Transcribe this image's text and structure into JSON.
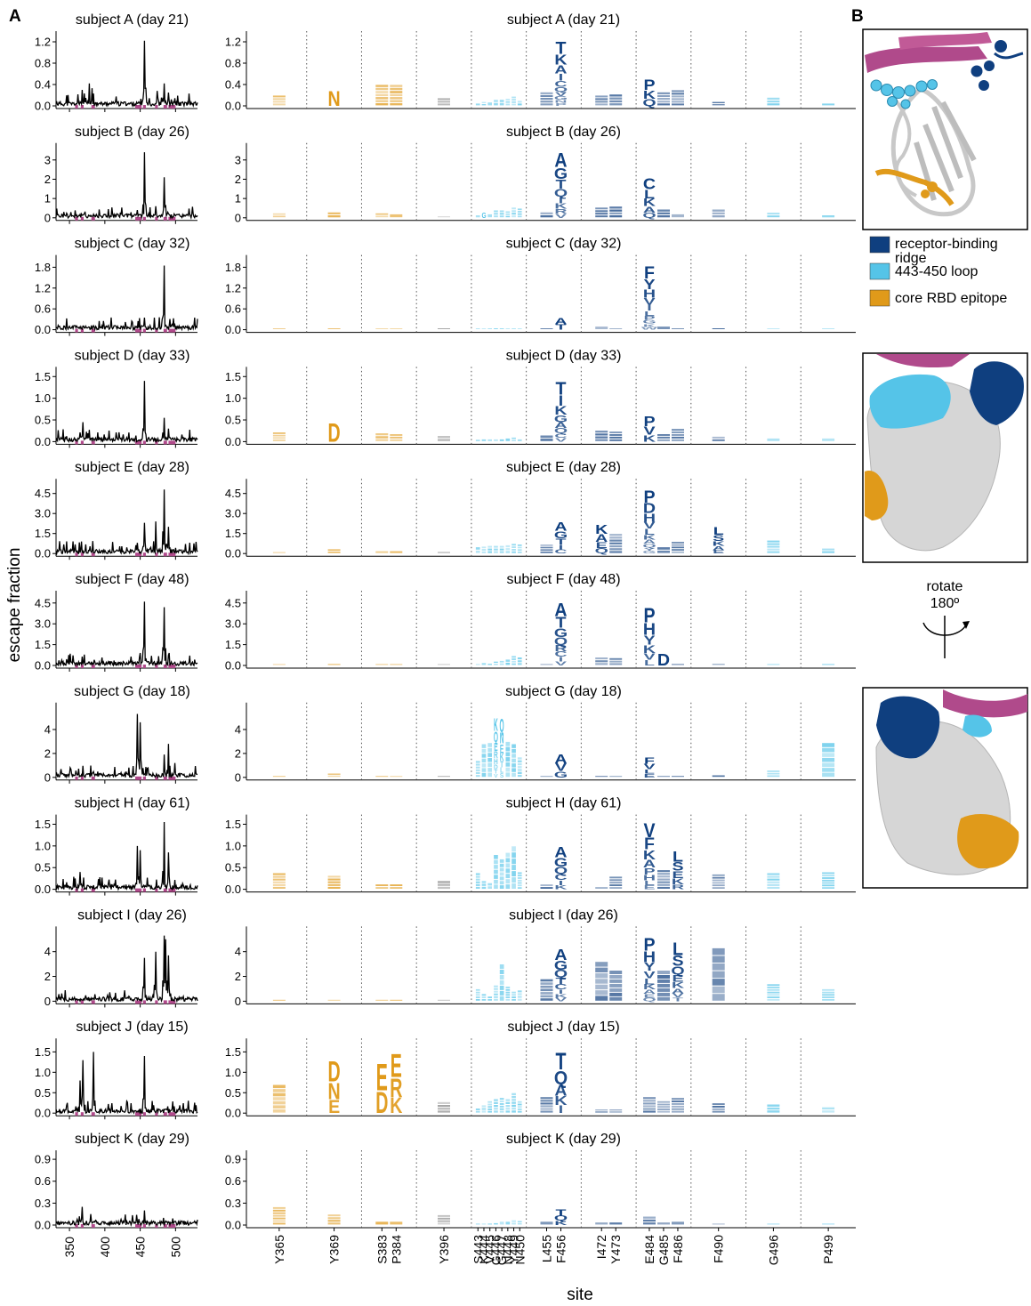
{
  "panel_labels": {
    "a": "A",
    "b": "B"
  },
  "axis": {
    "ylabel": "escape fraction",
    "xlabel_logo": "site"
  },
  "colors": {
    "ridge": "#0f3f7f",
    "loop": "#55c4e8",
    "core": "#e09a1a",
    "gray": "#8a8a8a",
    "site_marker": "#b04a8b",
    "helix": "#b04a8b",
    "surface": "#d6d6d6"
  },
  "legend": [
    {
      "label": "receptor-binding ridge",
      "line1": "receptor-binding",
      "line2": "ridge",
      "color": "#0f3f7f"
    },
    {
      "label": "443-450 loop",
      "color": "#55c4e8"
    },
    {
      "label": "core RBD epitope",
      "color": "#e09a1a"
    }
  ],
  "rotate": {
    "line1": "rotate",
    "line2": "180º"
  },
  "chart_data": {
    "type": "line+logo",
    "line_xticks": [
      350,
      400,
      450,
      500
    ],
    "line_xlim": [
      331,
      531
    ],
    "site_colors": [
      "core",
      "core",
      "core",
      "core",
      "gray",
      "loop",
      "loop",
      "loop",
      "loop",
      "loop",
      "loop",
      "loop",
      "loop",
      "ridge",
      "ridge",
      "ridge",
      "ridge",
      "ridge",
      "ridge",
      "ridge",
      "ridge",
      "loop",
      "loop"
    ],
    "sites": [
      "Y365",
      "Y369",
      "S383",
      "P384",
      "Y396",
      "S443",
      "K444",
      "V445",
      "G446",
      "G447",
      "N448",
      "Y449",
      "N450",
      "L455",
      "F456",
      "I472",
      "Y473",
      "E484",
      "G485",
      "F486",
      "F490",
      "G496",
      "P499"
    ],
    "site_groups": [
      [
        0
      ],
      [
        1
      ],
      [
        2,
        3
      ],
      [
        4
      ],
      [
        5,
        6,
        7,
        8,
        9,
        10,
        11,
        12
      ],
      [
        13,
        14
      ],
      [
        15,
        16
      ],
      [
        17,
        18,
        19
      ],
      [
        20
      ],
      [
        21
      ],
      [
        22
      ]
    ],
    "subjects": [
      {
        "title": "subject A (day 21)",
        "ylim": [
          0,
          1.3
        ],
        "yticks": [
          0.0,
          0.4,
          0.8,
          1.2
        ],
        "yticklabels": [
          "0.0",
          "0.4",
          "0.8",
          "1.2"
        ],
        "peaks": [
          [
            368,
            0.3
          ],
          [
            378,
            0.42
          ],
          [
            382,
            0.33
          ],
          [
            456,
            1.22
          ],
          [
            474,
            0.28
          ],
          [
            484,
            0.42
          ],
          [
            490,
            0.25
          ]
        ],
        "site_escape": [
          0.2,
          0.3,
          0.4,
          0.4,
          0.15,
          0.05,
          0.08,
          0.07,
          0.12,
          0.12,
          0.14,
          0.18,
          0.1,
          0.26,
          1.22,
          0.2,
          0.22,
          0.5,
          0.26,
          0.3,
          0.08,
          0.16,
          0.05
        ],
        "logo_letters": {
          "14": "TKAICQVGNP",
          "1": "N",
          "17": "PKQ"
        }
      },
      {
        "title": "subject B (day 26)",
        "ylim": [
          0,
          3.6
        ],
        "yticks": [
          0,
          1,
          2,
          3
        ],
        "yticklabels": [
          "0",
          "1",
          "2",
          "3"
        ],
        "peaks": [
          [
            456,
            3.4
          ],
          [
            484,
            2.1
          ],
          [
            472,
            0.6
          ],
          [
            446,
            0.4
          ]
        ],
        "site_escape": [
          0.25,
          0.3,
          0.25,
          0.2,
          0.06,
          0.15,
          0.3,
          0.2,
          0.4,
          0.4,
          0.35,
          0.55,
          0.5,
          0.3,
          3.4,
          0.55,
          0.6,
          2.1,
          0.45,
          0.2,
          0.45,
          0.28,
          0.15
        ],
        "logo_letters": {
          "14": "AGTQIKRV",
          "17": "CLKAQ",
          "6": "G"
        }
      },
      {
        "title": "subject C (day 32)",
        "ylim": [
          0,
          2.0
        ],
        "yticks": [
          0.0,
          0.6,
          1.2,
          1.8
        ],
        "yticklabels": [
          "0.0",
          "0.6",
          "1.2",
          "1.8"
        ],
        "peaks": [
          [
            484,
            1.85
          ],
          [
            456,
            0.35
          ]
        ],
        "site_escape": [
          0.02,
          0.03,
          0.02,
          0.02,
          0.02,
          0.02,
          0.02,
          0.02,
          0.02,
          0.02,
          0.02,
          0.02,
          0.02,
          0.02,
          0.35,
          0.1,
          0.05,
          1.85,
          0.1,
          0.03,
          0.03,
          0.02,
          0.02
        ],
        "logo_letters": {
          "17": "FYHVILPGKW",
          "14": "AT"
        }
      },
      {
        "title": "subject D (day 33)",
        "ylim": [
          0,
          1.6
        ],
        "yticks": [
          0.0,
          0.5,
          1.0,
          1.5
        ],
        "yticklabels": [
          "0.0",
          "0.5",
          "1.0",
          "1.5"
        ],
        "peaks": [
          [
            456,
            1.4
          ],
          [
            369,
            0.45
          ],
          [
            484,
            0.55
          ],
          [
            490,
            0.3
          ]
        ],
        "site_escape": [
          0.22,
          0.45,
          0.2,
          0.18,
          0.14,
          0.05,
          0.06,
          0.06,
          0.06,
          0.06,
          0.08,
          0.1,
          0.06,
          0.15,
          1.4,
          0.26,
          0.24,
          0.6,
          0.18,
          0.3,
          0.12,
          0.08,
          0.08
        ],
        "logo_letters": {
          "14": "TIKGAQCV",
          "1": "D",
          "17": "PVK"
        }
      },
      {
        "title": "subject E (day 28)",
        "ylim": [
          0,
          5.2
        ],
        "yticks": [
          0.0,
          1.5,
          3.0,
          4.5
        ],
        "yticklabels": [
          "0.0",
          "1.5",
          "3.0",
          "4.5"
        ],
        "peaks": [
          [
            484,
            4.8
          ],
          [
            472,
            2.4
          ],
          [
            456,
            2.3
          ],
          [
            490,
            2.0
          ],
          [
            446,
            0.8
          ]
        ],
        "site_escape": [
          0.12,
          0.35,
          0.2,
          0.2,
          0.15,
          0.5,
          0.55,
          0.6,
          0.6,
          0.6,
          0.65,
          0.75,
          0.7,
          0.7,
          2.4,
          2.2,
          1.5,
          4.8,
          0.5,
          0.9,
          2.0,
          1.0,
          0.4
        ],
        "logo_letters": {
          "17": "PDHVLKAQYG",
          "14": "AGTIC",
          "15": "KAEQ",
          "20": "LSKAE"
        }
      },
      {
        "title": "subject F (day 48)",
        "ylim": [
          0,
          5.0
        ],
        "yticks": [
          0.0,
          1.5,
          3.0,
          4.5
        ],
        "yticklabels": [
          "0.0",
          "1.5",
          "3.0",
          "4.5"
        ],
        "peaks": [
          [
            456,
            4.6
          ],
          [
            484,
            4.2
          ],
          [
            449,
            0.6
          ]
        ],
        "site_escape": [
          0.08,
          0.08,
          0.06,
          0.06,
          0.06,
          0.08,
          0.2,
          0.15,
          0.3,
          0.35,
          0.45,
          0.7,
          0.6,
          0.08,
          4.6,
          0.6,
          0.55,
          4.2,
          0.9,
          0.06,
          0.15,
          0.05,
          0.05
        ],
        "logo_letters": {
          "14": "ATGQRCIV",
          "17": "PHYKVL",
          "18": "D"
        }
      },
      {
        "title": "subject G (day 18)",
        "ylim": [
          0,
          5.8
        ],
        "yticks": [
          0,
          2,
          4
        ],
        "yticklabels": [
          "0",
          "2",
          "4"
        ],
        "peaks": [
          [
            446,
            5.3
          ],
          [
            450,
            4.6
          ],
          [
            484,
            1.9
          ],
          [
            490,
            2.8
          ],
          [
            499,
            1.2
          ]
        ],
        "site_escape": [
          0.08,
          0.35,
          0.06,
          0.06,
          0.06,
          1.4,
          2.8,
          2.9,
          5.0,
          5.0,
          3.0,
          2.8,
          1.7,
          0.1,
          2.0,
          0.15,
          0.15,
          1.7,
          0.1,
          0.1,
          0.2,
          0.6,
          2.9
        ],
        "logo_letters": {
          "8": "KQERHDTV",
          "9": "QNEKTLS",
          "14": "AVG",
          "17": "FVLE"
        }
      },
      {
        "title": "subject H (day 61)",
        "ylim": [
          0,
          1.6
        ],
        "yticks": [
          0.0,
          0.5,
          1.0,
          1.5
        ],
        "yticklabels": [
          "0.0",
          "0.5",
          "1.0",
          "1.5"
        ],
        "peaks": [
          [
            446,
            1.0
          ],
          [
            450,
            0.9
          ],
          [
            484,
            1.55
          ],
          [
            490,
            0.85
          ],
          [
            365,
            0.4
          ]
        ],
        "site_escape": [
          0.38,
          0.32,
          0.12,
          0.12,
          0.2,
          0.38,
          0.2,
          0.15,
          0.8,
          0.7,
          0.85,
          1.0,
          0.4,
          0.12,
          1.0,
          0.06,
          0.3,
          1.55,
          0.45,
          0.9,
          0.35,
          0.38,
          0.4
        ],
        "logo_letters": {
          "14": "AGQCIK",
          "17": "VFKAPHLE",
          "19": "LSEKR"
        }
      },
      {
        "title": "subject I (day 26)",
        "ylim": [
          0,
          5.6
        ],
        "yticks": [
          0,
          2,
          4
        ],
        "yticklabels": [
          "0",
          "2",
          "4"
        ],
        "peaks": [
          [
            456,
            3.5
          ],
          [
            472,
            4.0
          ],
          [
            484,
            5.3
          ],
          [
            486,
            5.0
          ],
          [
            490,
            3.7
          ]
        ],
        "site_escape": [
          0.1,
          0.1,
          0.06,
          0.06,
          0.06,
          1.0,
          0.6,
          0.4,
          1.3,
          3.0,
          1.2,
          0.8,
          0.9,
          1.8,
          4.3,
          3.2,
          2.5,
          5.2,
          2.5,
          4.8,
          4.3,
          1.4,
          1.0
        ],
        "logo_letters": {
          "14": "AGQTCIKV",
          "17": "PHYVLKAEQ",
          "19": "LSQEKAVT"
        }
      },
      {
        "title": "subject J (day 15)",
        "ylim": [
          0,
          1.7
        ],
        "yticks": [
          0.0,
          0.5,
          1.0,
          1.5
        ],
        "yticklabels": [
          "0.0",
          "0.5",
          "1.0",
          "1.5"
        ],
        "peaks": [
          [
            369,
            1.3
          ],
          [
            384,
            1.5
          ],
          [
            456,
            1.4
          ],
          [
            365,
            0.8
          ]
        ],
        "site_escape": [
          0.7,
          1.3,
          1.25,
          1.5,
          0.28,
          0.12,
          0.2,
          0.3,
          0.35,
          0.38,
          0.35,
          0.5,
          0.3,
          0.4,
          1.5,
          0.1,
          0.1,
          0.4,
          0.3,
          0.38,
          0.25,
          0.22,
          0.15
        ],
        "logo_letters": {
          "1": "DNE",
          "2": "ED",
          "3": "ERK",
          "14": "TQAKI"
        }
      },
      {
        "title": "subject K (day 29)",
        "ylim": [
          0,
          0.95
        ],
        "yticks": [
          0.0,
          0.3,
          0.6,
          0.9
        ],
        "yticklabels": [
          "0.0",
          "0.3",
          "0.6",
          "0.9"
        ],
        "peaks": [
          [
            368,
            0.25
          ],
          [
            380,
            0.15
          ],
          [
            456,
            0.2
          ]
        ],
        "site_escape": [
          0.25,
          0.15,
          0.05,
          0.05,
          0.14,
          0.02,
          0.02,
          0.02,
          0.03,
          0.05,
          0.05,
          0.07,
          0.06,
          0.05,
          0.22,
          0.04,
          0.04,
          0.12,
          0.04,
          0.05,
          0.02,
          0.02,
          0.02
        ],
        "logo_letters": {
          "14": "TQK"
        }
      }
    ]
  }
}
